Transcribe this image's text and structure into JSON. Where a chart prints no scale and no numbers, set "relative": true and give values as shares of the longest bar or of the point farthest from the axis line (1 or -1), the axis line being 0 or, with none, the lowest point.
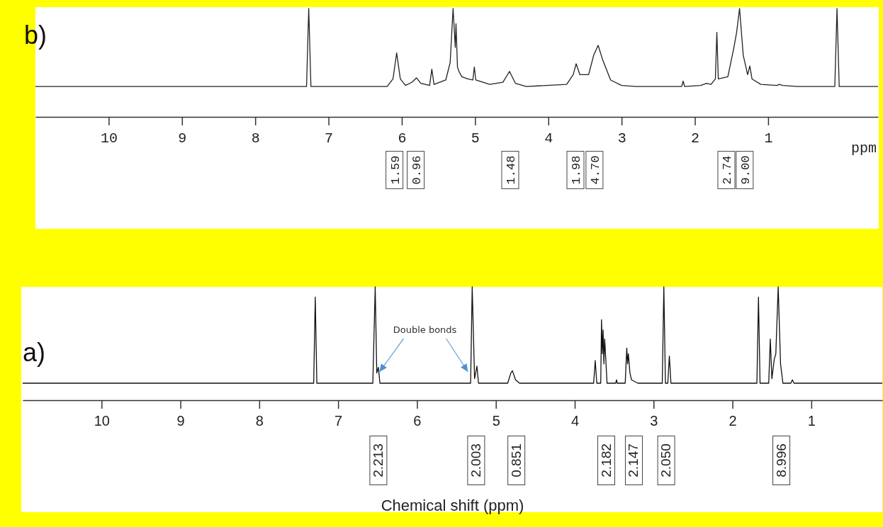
{
  "chart_data": [
    {
      "type": "line",
      "title": "b)",
      "xlabel": "ppm",
      "relative": true,
      "xlim": [
        11,
        -0.5
      ],
      "xticks": [
        10,
        9,
        8,
        7,
        6,
        5,
        4,
        3,
        2,
        1
      ],
      "line_style": "solid",
      "series": [
        {
          "color": "#222222",
          "x": [
            11,
            7.3,
            7.27,
            7.24,
            6.2,
            6.12,
            6.07,
            6.02,
            5.95,
            5.86,
            5.8,
            5.74,
            5.62,
            5.59,
            5.56,
            5.4,
            5.34,
            5.3,
            5.27,
            5.26,
            5.24,
            5.22,
            5.18,
            5.1,
            5.03,
            5.01,
            4.99,
            4.8,
            4.62,
            4.53,
            4.45,
            4.3,
            3.75,
            3.66,
            3.62,
            3.57,
            3.45,
            3.38,
            3.32,
            3.26,
            3.15,
            3,
            2.8,
            2.18,
            2.16,
            2.14,
            1.92,
            1.84,
            1.78,
            1.72,
            1.7,
            1.68,
            1.55,
            1.47,
            1.43,
            1.39,
            1.34,
            1.28,
            1.25,
            1.22,
            1.1,
            0.88,
            0.85,
            0.8,
            0.6,
            0.09,
            0.06,
            0.03,
            -0.5
          ],
          "values": [
            0.28,
            0.28,
            1,
            0.28,
            0.28,
            0.35,
            0.59,
            0.35,
            0.29,
            0.32,
            0.36,
            0.31,
            0.29,
            0.44,
            0.3,
            0.34,
            0.5,
            1,
            0.64,
            0.86,
            0.46,
            0.42,
            0.37,
            0.35,
            0.34,
            0.46,
            0.34,
            0.3,
            0.32,
            0.42,
            0.31,
            0.28,
            0.3,
            0.39,
            0.49,
            0.39,
            0.39,
            0.57,
            0.66,
            0.53,
            0.34,
            0.29,
            0.28,
            0.28,
            0.33,
            0.28,
            0.29,
            0.31,
            0.3,
            0.35,
            0.78,
            0.35,
            0.37,
            0.63,
            0.78,
            1,
            0.57,
            0.39,
            0.47,
            0.35,
            0.3,
            0.29,
            0.3,
            0.29,
            0.28,
            0.28,
            1,
            0.28,
            0.28
          ]
        }
      ],
      "annotations": [
        "1.59",
        "0.96",
        "1.48",
        "1.98",
        "4.70",
        "2.74",
        "9.00"
      ]
    },
    {
      "type": "line",
      "title": "a)",
      "xlabel": "Chemical shift (ppm)",
      "relative": true,
      "xlim": [
        11,
        0.1
      ],
      "xticks": [
        10,
        9,
        8,
        7,
        6,
        5,
        4,
        3,
        2,
        1
      ],
      "line_style": "solid",
      "series": [
        {
          "color": "#111111",
          "x": [
            11,
            7.31,
            7.29,
            7.27,
            6.56,
            6.53,
            6.51,
            6.49,
            6.47,
            5.32,
            5.3,
            5.27,
            5.24,
            5.22,
            4.85,
            4.81,
            4.79,
            4.75,
            4.7,
            3.76,
            3.74,
            3.72,
            3.67,
            3.66,
            3.65,
            3.64,
            3.63,
            3.62,
            3.59,
            3.48,
            3.47,
            3.46,
            3.36,
            3.34,
            3.33,
            3.32,
            3.3,
            3.28,
            3.2,
            2.89,
            2.87,
            2.85,
            2.82,
            2.8,
            2.78,
            1.69,
            1.67,
            1.65,
            1.54,
            1.52,
            1.5,
            1.47,
            1.45,
            1.42,
            1.39,
            1.36,
            1.26,
            1.24,
            1.22,
            0.1
          ],
          "values": [
            0.15,
            0.15,
            0.91,
            0.15,
            0.15,
            1,
            0.24,
            0.29,
            0.15,
            0.15,
            1,
            0.19,
            0.3,
            0.15,
            0.15,
            0.24,
            0.26,
            0.18,
            0.15,
            0.15,
            0.35,
            0.15,
            0.15,
            0.71,
            0.41,
            0.62,
            0.32,
            0.54,
            0.15,
            0.15,
            0.18,
            0.15,
            0.15,
            0.46,
            0.32,
            0.41,
            0.24,
            0.18,
            0.15,
            0.15,
            1,
            0.15,
            0.15,
            0.39,
            0.15,
            0.15,
            0.91,
            0.15,
            0.15,
            0.54,
            0.19,
            0.36,
            0.41,
            1,
            0.32,
            0.15,
            0.15,
            0.18,
            0.15,
            0.15
          ]
        }
      ],
      "annotations": [
        "Double bonds",
        "2.213",
        "2.003",
        "0.851",
        "2.182",
        "2.147",
        "2.050",
        "8.996"
      ]
    }
  ]
}
